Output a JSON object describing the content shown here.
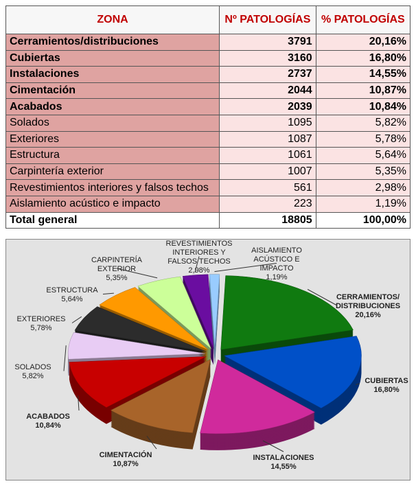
{
  "table": {
    "header": [
      "ZONA",
      "Nº PATOLOGÍAS",
      "% PATOLOGÍAS"
    ],
    "rows": [
      [
        "Cerramientos/distribuciones",
        "3791",
        "20,16%"
      ],
      [
        "Cubiertas",
        "3160",
        "16,80%"
      ],
      [
        "Instalaciones",
        "2737",
        "14,55%"
      ],
      [
        "Cimentación",
        "2044",
        "10,87%"
      ],
      [
        "Acabados",
        "2039",
        "10,84%"
      ],
      [
        "Solados",
        "1095",
        "5,82%"
      ],
      [
        "Exteriores",
        "1087",
        "5,78%"
      ],
      [
        "Estructura",
        "1061",
        "5,64%"
      ],
      [
        "Carpintería exterior",
        "1007",
        "5,35%"
      ],
      [
        "Revestimientos interiores y falsos techos",
        "561",
        "2,98%"
      ],
      [
        "Aislamiento acústico e impacto",
        "223",
        "1,19%"
      ]
    ],
    "total": [
      "Total general",
      "18805",
      "100,00%"
    ]
  },
  "chart_data": {
    "type": "pie",
    "categories": [
      [
        "CERRAMIENTOS/",
        "DISTRIBUCIONES"
      ],
      [
        "CUBIERTAS"
      ],
      [
        "INSTALACIONES"
      ],
      [
        "CIMENTACIÓN"
      ],
      [
        "ACABADOS"
      ],
      [
        "SOLADOS"
      ],
      [
        "EXTERIORES"
      ],
      [
        "ESTRUCTURA"
      ],
      [
        "CARPINTERÍA",
        "EXTERIOR"
      ],
      [
        "REVESTIMIENTOS",
        "INTERIORES Y",
        "FALSOS TECHOS"
      ],
      [
        "AISLAMIENTO",
        "ACÚSTICO E",
        "IMPACTO"
      ]
    ],
    "values": [
      20.16,
      16.8,
      14.55,
      10.87,
      10.84,
      5.82,
      5.78,
      5.64,
      5.35,
      2.98,
      1.19
    ],
    "value_labels": [
      "20,16%",
      "16,80%",
      "14,55%",
      "10,87%",
      "10,84%",
      "5,82%",
      "5,78%",
      "5,64%",
      "5,35%",
      "2,98%",
      "1,19%"
    ],
    "colors": [
      "#107a10",
      "#0050c8",
      "#d02a9c",
      "#a8642a",
      "#c80000",
      "#e8ccf4",
      "#2c2c2c",
      "#ff9900",
      "#ccff99",
      "#6a0da0",
      "#99ccff"
    ]
  }
}
